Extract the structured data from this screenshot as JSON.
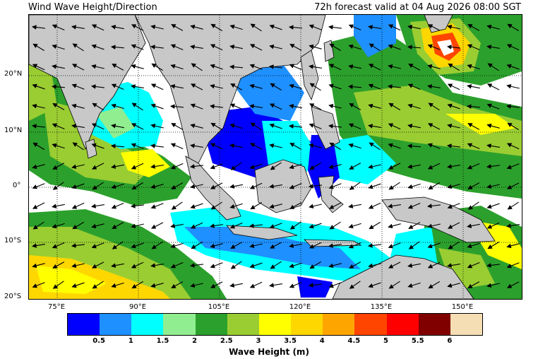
{
  "title_left": "Wind Wave Height/Direction",
  "title_right": "72h forecast valid at 04 Aug 2026 08:00 SGT",
  "lat_labels": [
    "20°N",
    "10°N",
    "0°",
    "10°S",
    "20°S"
  ],
  "lon_labels": [
    "75°E",
    "90°E",
    "105°E",
    "120°E",
    "135°E",
    "150°E"
  ],
  "colorbar": {
    "label": "Wave Height (m)",
    "ticks": [
      "0.5",
      "1",
      "1.5",
      "2",
      "2.5",
      "3",
      "3.5",
      "4",
      "4.5",
      "5",
      "5.5",
      "6"
    ],
    "colors": [
      "#0000ff",
      "#1e90ff",
      "#00ffff",
      "#90ee90",
      "#2ca02c",
      "#9acd32",
      "#ffff00",
      "#ffd700",
      "#ffa500",
      "#ff4500",
      "#ff0000",
      "#800000",
      "#f5deb3"
    ]
  },
  "map_colors": {
    "land": "#c8c8c8",
    "sea_calm": "#ffffff",
    "grid": "#000000"
  }
}
